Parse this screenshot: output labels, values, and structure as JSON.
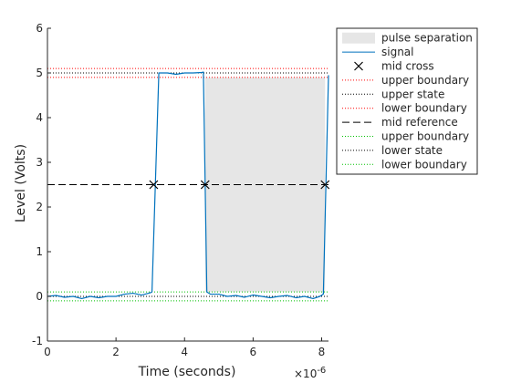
{
  "chart_data": {
    "type": "line",
    "xlabel": "Time (seconds)",
    "ylabel": "Level (Volts)",
    "x_exponent_label": "×10",
    "x_exponent": "-6",
    "xlim": [
      0,
      8.2
    ],
    "ylim": [
      -1,
      6
    ],
    "x_ticks": [
      0,
      2,
      4,
      6,
      8
    ],
    "x_tick_labels": [
      "0",
      "2",
      "4",
      "6",
      "8"
    ],
    "y_ticks": [
      -1,
      0,
      1,
      2,
      3,
      4,
      5,
      6
    ],
    "y_tick_labels": [
      "-1",
      "0",
      "1",
      "2",
      "3",
      "4",
      "5",
      "6"
    ],
    "grid": false,
    "legend_position": "outside-top-right",
    "colors": {
      "signal": "#0072BD",
      "separation_fill": "#E6E6E6",
      "marker": "#000000",
      "high_boundary": "#FF0000",
      "low_boundary": "#00C000",
      "state": "#000000",
      "axis": "#262626"
    },
    "signal": {
      "name": "signal",
      "x": [
        0,
        0.25,
        0.5,
        0.75,
        1.0,
        1.25,
        1.5,
        1.75,
        2.0,
        2.25,
        2.5,
        2.75,
        3.0,
        3.05,
        3.25,
        3.5,
        3.75,
        4.0,
        4.25,
        4.5,
        4.55,
        4.65,
        4.75,
        5.0,
        5.25,
        5.5,
        5.75,
        6.0,
        6.25,
        6.5,
        6.75,
        7.0,
        7.25,
        7.5,
        7.75,
        7.95,
        8.05,
        8.2
      ],
      "y": [
        0.0,
        0.02,
        -0.02,
        0.0,
        -0.05,
        0.0,
        -0.03,
        0.0,
        0.0,
        0.05,
        0.07,
        0.03,
        0.08,
        0.1,
        5.0,
        5.0,
        4.97,
        5.0,
        5.0,
        5.01,
        5.02,
        0.1,
        0.05,
        0.05,
        0.0,
        0.02,
        -0.02,
        0.03,
        0.0,
        -0.03,
        0.0,
        0.02,
        -0.03,
        0.0,
        -0.05,
        0.0,
        0.05,
        4.95
      ]
    },
    "pulse_separation": {
      "name": "pulse separation",
      "x_start": 4.6,
      "x_end": 8.1
    },
    "mid_cross": {
      "name": "mid cross",
      "x": [
        3.1,
        4.6,
        8.1
      ],
      "y": [
        2.5,
        2.5,
        2.5
      ]
    },
    "levels": [
      {
        "name": "upper boundary",
        "y": 5.1,
        "group": "high",
        "style": "dotted",
        "color": "#FF0000"
      },
      {
        "name": "upper state",
        "y": 5.0,
        "group": "high",
        "style": "dotted",
        "color": "#000000"
      },
      {
        "name": "lower boundary",
        "y": 4.9,
        "group": "high",
        "style": "dotted",
        "color": "#FF0000"
      },
      {
        "name": "mid reference",
        "y": 2.5,
        "group": "mid",
        "style": "dashed",
        "color": "#000000"
      },
      {
        "name": "upper boundary",
        "y": 0.1,
        "group": "low",
        "style": "dotted",
        "color": "#00C000"
      },
      {
        "name": "lower state",
        "y": 0.0,
        "group": "low",
        "style": "dotted",
        "color": "#000000"
      },
      {
        "name": "lower boundary",
        "y": -0.1,
        "group": "low",
        "style": "dotted",
        "color": "#00C000"
      }
    ],
    "legend": [
      {
        "label": "pulse separation",
        "kind": "patch",
        "color": "#E6E6E6"
      },
      {
        "label": "signal",
        "kind": "line",
        "style": "solid",
        "color": "#0072BD"
      },
      {
        "label": "mid cross",
        "kind": "marker",
        "color": "#000000"
      },
      {
        "label": "upper boundary",
        "kind": "line",
        "style": "dotted",
        "color": "#FF0000"
      },
      {
        "label": "upper state",
        "kind": "line",
        "style": "dotted",
        "color": "#000000"
      },
      {
        "label": "lower boundary",
        "kind": "line",
        "style": "dotted",
        "color": "#FF0000"
      },
      {
        "label": "mid reference",
        "kind": "line",
        "style": "dashed",
        "color": "#000000"
      },
      {
        "label": "upper boundary",
        "kind": "line",
        "style": "dotted",
        "color": "#00C000"
      },
      {
        "label": "lower state",
        "kind": "line",
        "style": "dotted",
        "color": "#000000"
      },
      {
        "label": "lower boundary",
        "kind": "line",
        "style": "dotted",
        "color": "#00C000"
      }
    ]
  }
}
